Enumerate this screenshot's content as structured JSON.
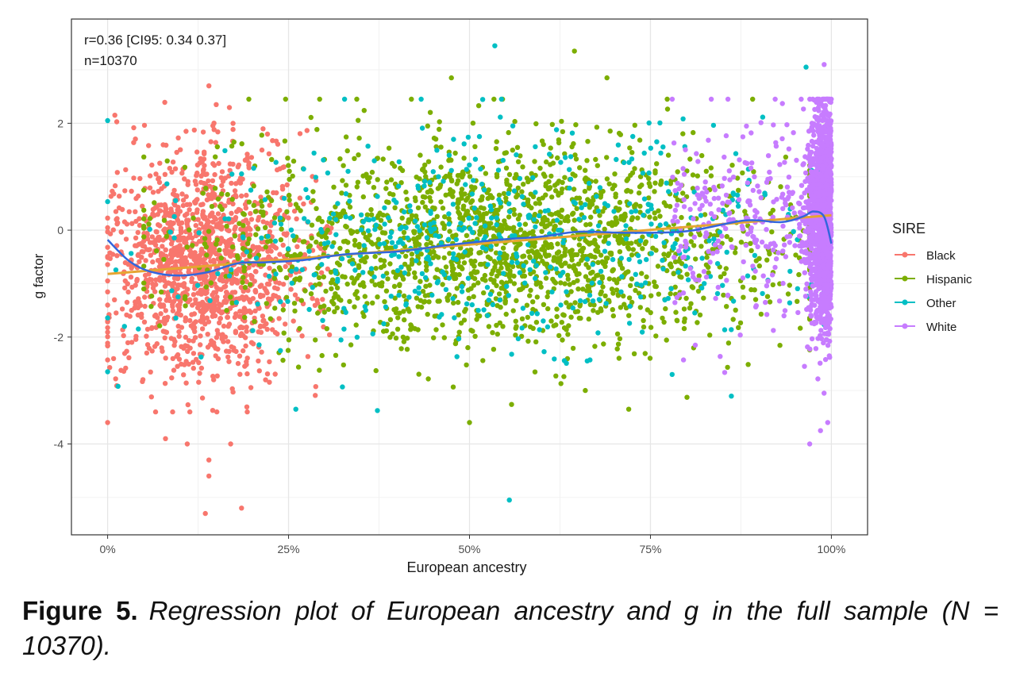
{
  "chart_data": {
    "type": "scatter",
    "xlabel": "European ancestry",
    "ylabel": "g factor",
    "xlim": [
      -0.05,
      1.05
    ],
    "ylim": [
      -5.7,
      3.95
    ],
    "x_ticks": [
      0,
      0.25,
      0.5,
      0.75,
      1.0
    ],
    "x_tick_labels": [
      "0%",
      "25%",
      "50%",
      "75%",
      "100%"
    ],
    "y_ticks": [
      -4,
      -2,
      0,
      2
    ],
    "y_tick_labels": [
      "-4",
      "-2",
      "0",
      "2"
    ],
    "grid": true,
    "annotations": [
      "r=0.36 [CI95: 0.34 0.37]",
      "n=10370"
    ],
    "legend": {
      "title": "SIRE",
      "position": "right",
      "entries": [
        {
          "name": "Black",
          "color": "#F8766D"
        },
        {
          "name": "Hispanic",
          "color": "#7CAE00"
        },
        {
          "name": "Other",
          "color": "#00BFC4"
        },
        {
          "name": "White",
          "color": "#C77CFF"
        }
      ]
    },
    "series": [
      {
        "name": "Black",
        "color": "#F8766D",
        "x_center": 0.13,
        "x_spread": 0.06,
        "x_range": [
          0.0,
          0.31
        ],
        "y_mean": -0.6,
        "y_sd": 1.0,
        "n_points": 1400,
        "points": [
          [
            0.01,
            2.15
          ],
          [
            0.14,
            2.7
          ],
          [
            0.15,
            2.35
          ],
          [
            0.0,
            -3.6
          ],
          [
            0.14,
            -4.3
          ],
          [
            0.14,
            -4.6
          ],
          [
            0.135,
            -5.3
          ],
          [
            0.185,
            -5.2
          ],
          [
            0.11,
            -4.0
          ],
          [
            0.17,
            -4.0
          ],
          [
            0.08,
            -3.9
          ]
        ]
      },
      {
        "name": "Hispanic",
        "color": "#7CAE00",
        "x_center": 0.55,
        "x_spread": 0.2,
        "x_range": [
          0.05,
          0.97
        ],
        "y_mean": -0.25,
        "y_sd": 0.95,
        "n_points": 1900,
        "points": [
          [
            0.645,
            3.35
          ],
          [
            0.475,
            2.85
          ],
          [
            0.69,
            2.85
          ],
          [
            0.72,
            -3.35
          ],
          [
            0.66,
            -3.0
          ],
          [
            0.5,
            -3.6
          ]
        ]
      },
      {
        "name": "Other",
        "color": "#00BFC4",
        "x_center": 0.55,
        "x_spread": 0.22,
        "x_range": [
          0.0,
          0.99
        ],
        "y_mean": -0.2,
        "y_sd": 1.0,
        "n_points": 550,
        "points": [
          [
            0.535,
            3.45
          ],
          [
            0.0,
            2.05
          ],
          [
            0.965,
            3.05
          ],
          [
            0.555,
            -5.05
          ],
          [
            0.26,
            -3.35
          ],
          [
            0.78,
            -2.7
          ]
        ]
      },
      {
        "name": "White",
        "color": "#C77CFF",
        "x_center": 0.98,
        "x_spread": 0.015,
        "x_range": [
          0.78,
          1.0
        ],
        "y_mean": 0.25,
        "y_sd": 1.0,
        "n_points": 1800,
        "points": [
          [
            0.99,
            3.1
          ],
          [
            0.97,
            -4.0
          ],
          [
            0.995,
            -3.6
          ],
          [
            0.985,
            -3.75
          ]
        ]
      }
    ],
    "fits": [
      {
        "kind": "linear",
        "color": "#E6A532",
        "x": [
          0,
          1
        ],
        "y": [
          -0.82,
          0.28
        ]
      },
      {
        "kind": "loess",
        "color": "#3366DD",
        "x": [
          0.0,
          0.03,
          0.06,
          0.1,
          0.14,
          0.18,
          0.22,
          0.27,
          0.33,
          0.4,
          0.47,
          0.54,
          0.6,
          0.65,
          0.72,
          0.8,
          0.88,
          0.93,
          0.96,
          0.975,
          0.99,
          1.0
        ],
        "y": [
          -0.18,
          -0.58,
          -0.78,
          -0.85,
          -0.78,
          -0.62,
          -0.6,
          -0.56,
          -0.45,
          -0.4,
          -0.28,
          -0.18,
          -0.12,
          -0.03,
          -0.05,
          -0.02,
          0.18,
          0.15,
          0.25,
          0.35,
          0.25,
          -0.25
        ]
      }
    ]
  },
  "caption": {
    "figure_label": "Figure 5.",
    "text": "Regression plot of European ancestry and g in the full sample (N = 10370)."
  }
}
